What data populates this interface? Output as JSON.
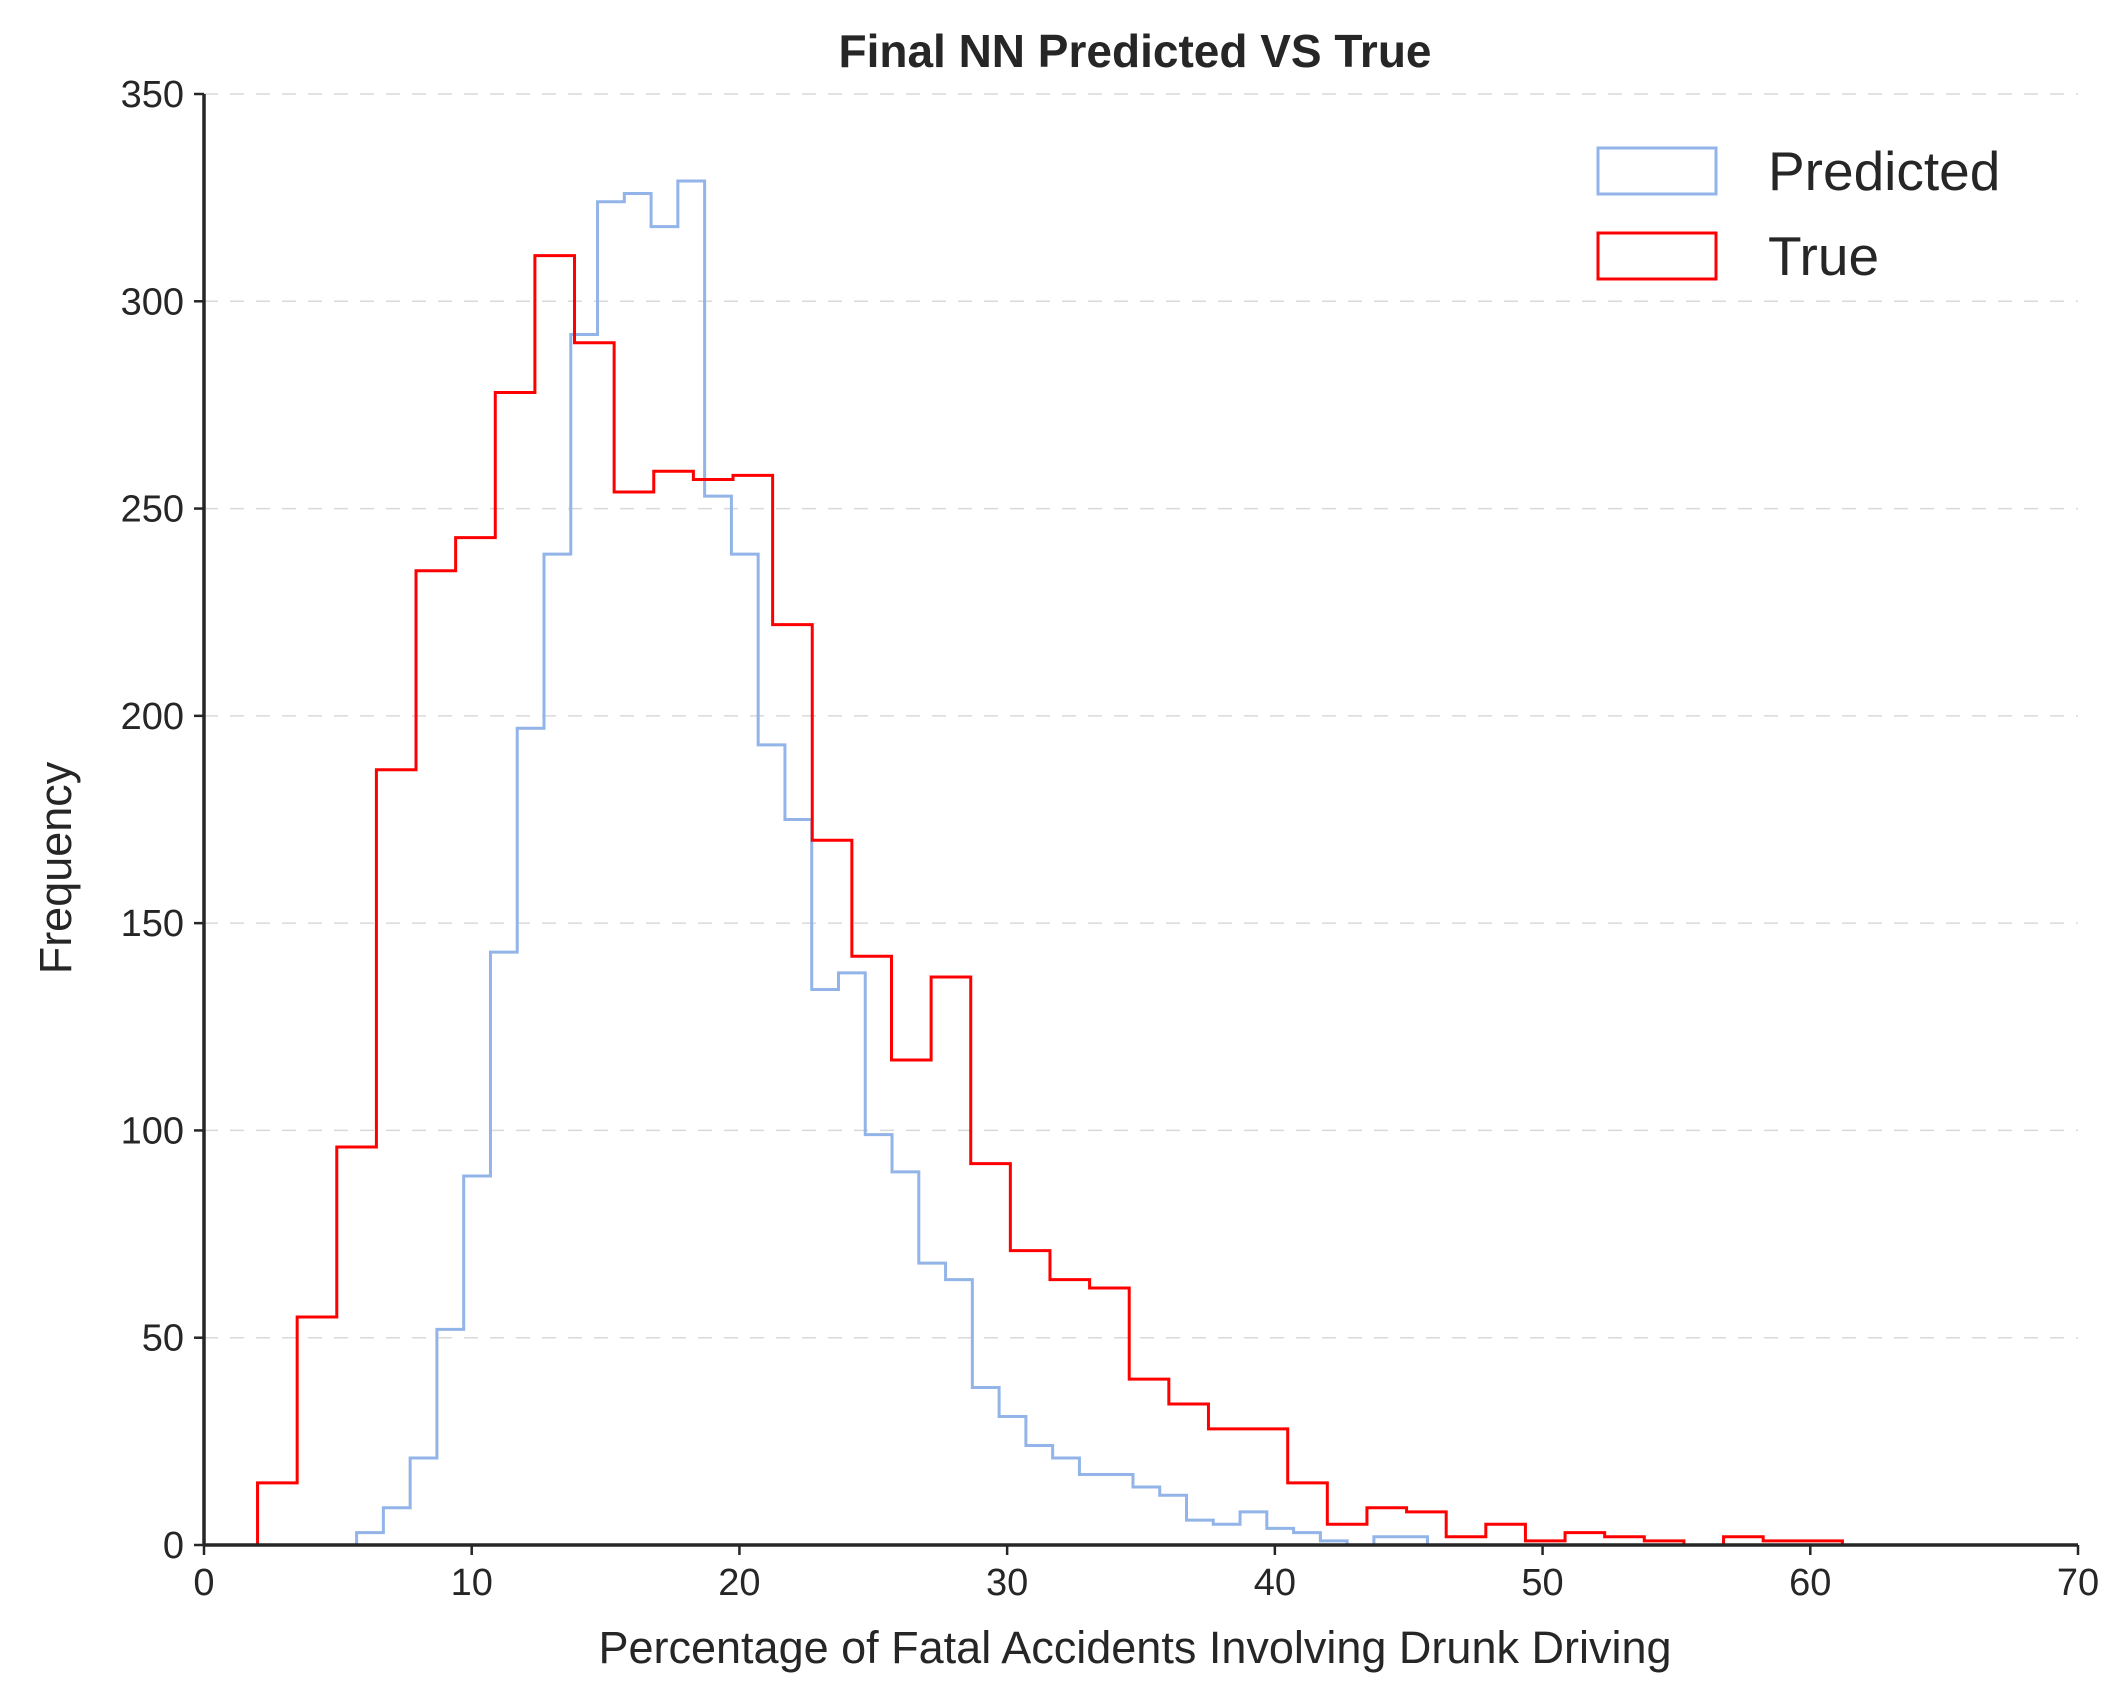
{
  "chart_data": {
    "type": "histogram",
    "title": "Final NN Predicted VS True",
    "xlabel": "Percentage of Fatal Accidents Involving Drunk Driving",
    "ylabel": "Frequency",
    "xlim": [
      0,
      70
    ],
    "ylim": [
      0,
      350
    ],
    "xticks": [
      0,
      10,
      20,
      30,
      40,
      50,
      60,
      70
    ],
    "yticks": [
      0,
      50,
      100,
      150,
      200,
      250,
      300,
      350
    ],
    "grid": "horizontal dashed",
    "legend_position": "top-right",
    "series": [
      {
        "name": "Predicted",
        "color": "#92b4e8",
        "bin_start": 5.7,
        "bin_width": 1.0,
        "counts": [
          3,
          9,
          21,
          52,
          89,
          143,
          197,
          239,
          292,
          324,
          326,
          318,
          329,
          253,
          239,
          193,
          175,
          134,
          138,
          99,
          90,
          68,
          64,
          38,
          31,
          24,
          21,
          17,
          17,
          14,
          12,
          6,
          5,
          8,
          4,
          3,
          1,
          0,
          2,
          2
        ]
      },
      {
        "name": "True",
        "color": "#ff0000",
        "bin_start": 2.0,
        "bin_width": 1.48,
        "counts": [
          15,
          55,
          96,
          187,
          235,
          243,
          278,
          311,
          290,
          254,
          259,
          257,
          258,
          222,
          170,
          142,
          117,
          137,
          92,
          71,
          64,
          62,
          40,
          34,
          28,
          28,
          15,
          5,
          9,
          8,
          2,
          5,
          1,
          3,
          2,
          1,
          0,
          2,
          1,
          1
        ]
      }
    ]
  }
}
